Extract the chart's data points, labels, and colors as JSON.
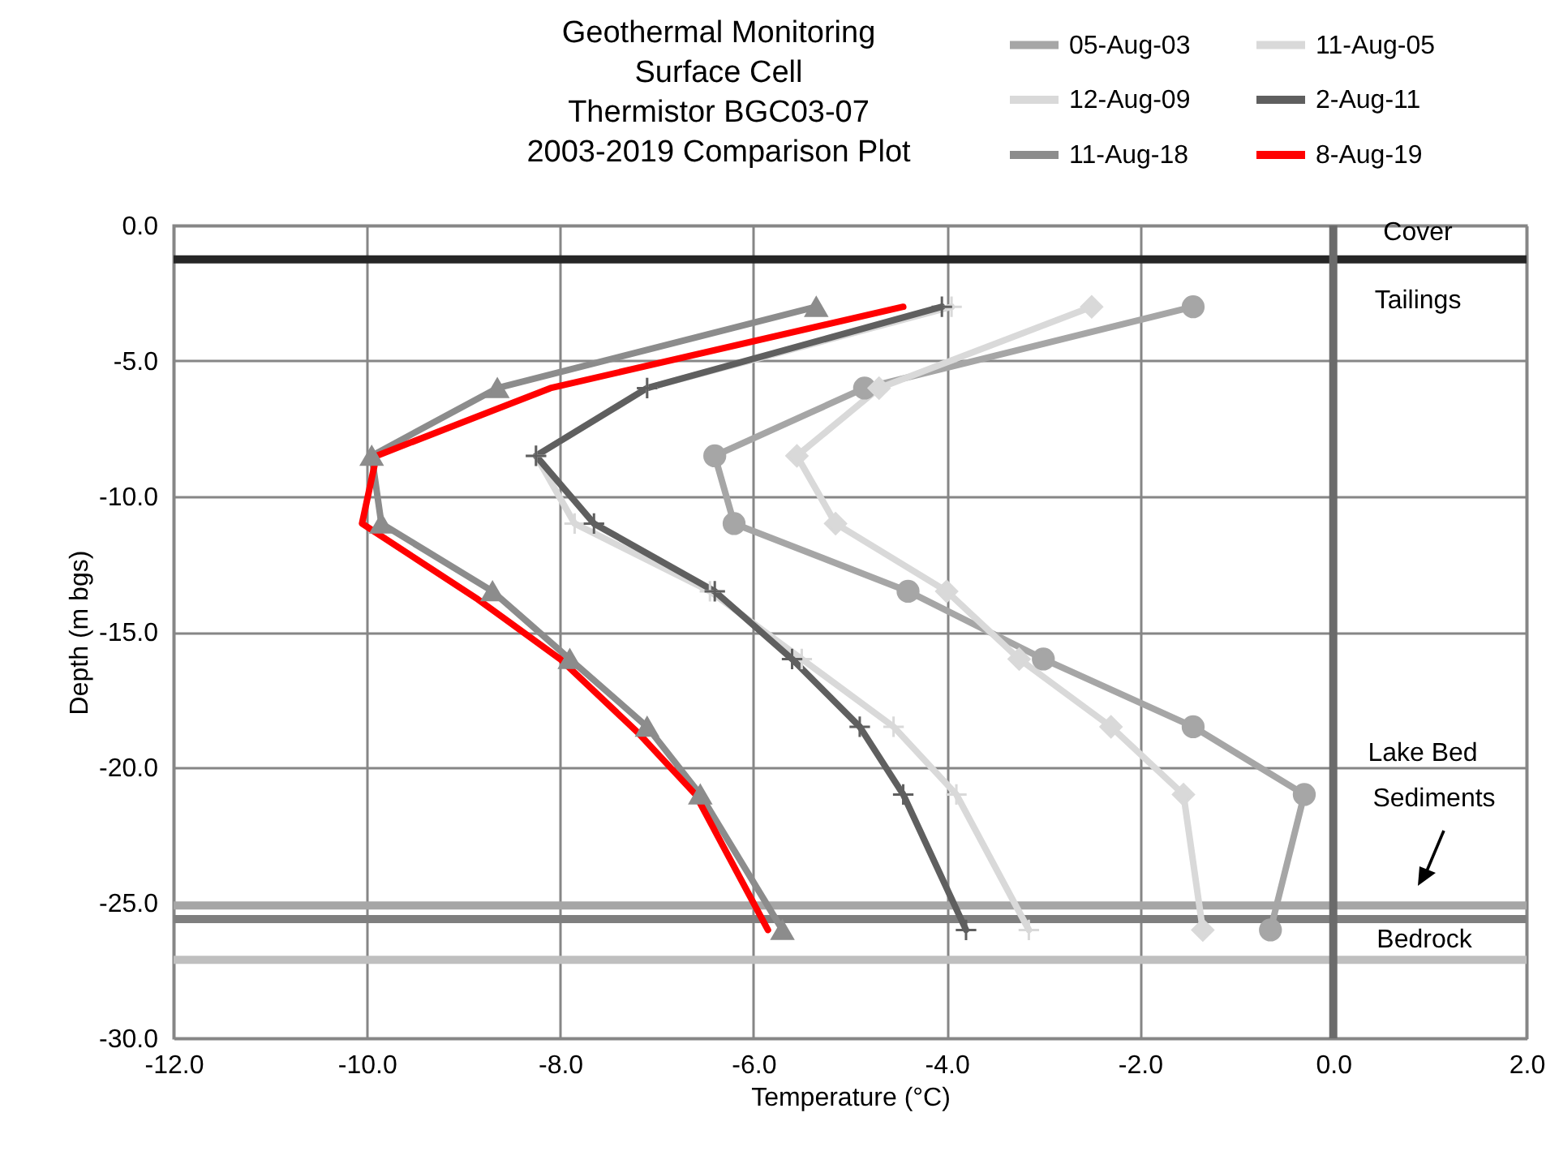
{
  "chart_data": {
    "type": "line",
    "title": "Geothermal Monitoring\nSurface Cell\nThermistor BGC03-07\n2003-2019 Comparison Plot",
    "xlabel": "Temperature (°C)",
    "ylabel": "Depth (m bgs)",
    "xlim": [
      -12,
      2
    ],
    "ylim": [
      -30,
      0
    ],
    "xticks": [
      {
        "value": -12,
        "label": "-12.0"
      },
      {
        "value": -10,
        "label": "-10.0"
      },
      {
        "value": -8,
        "label": "-8.0"
      },
      {
        "value": -6,
        "label": "-6.0"
      },
      {
        "value": -4,
        "label": "-4.0"
      },
      {
        "value": -2,
        "label": "-2.0"
      },
      {
        "value": 0,
        "label": "0.0"
      },
      {
        "value": 2,
        "label": "2.0"
      }
    ],
    "yticks": [
      {
        "value": 0,
        "label": "0.0"
      },
      {
        "value": -5,
        "label": "-5.0"
      },
      {
        "value": -10,
        "label": "-10.0"
      },
      {
        "value": -15,
        "label": "-15.0"
      },
      {
        "value": -20,
        "label": "-20.0"
      },
      {
        "value": -25,
        "label": "-25.0"
      },
      {
        "value": -30,
        "label": "-30.0"
      }
    ],
    "grid": true,
    "legend": "top right",
    "series": [
      {
        "name": "05-Aug-03",
        "color": "#a6a6a6",
        "marker": "circle",
        "x": [
          -1.45,
          -4.85,
          -6.4,
          -6.2,
          -4.4,
          -3.0,
          -1.45,
          -0.3,
          -0.65
        ],
        "values": [
          -3,
          -6,
          -8.5,
          -11,
          -13.5,
          -16,
          -18.5,
          -21,
          -26
        ]
      },
      {
        "name": "11-Aug-05",
        "color": "#d9d9d9",
        "marker": "diamond",
        "x": [
          -2.5,
          -4.7,
          -5.55,
          -5.15,
          -4.0,
          -3.25,
          -2.3,
          -1.55,
          -1.35
        ],
        "values": [
          -3,
          -6,
          -8.5,
          -11,
          -13.5,
          -16,
          -18.5,
          -21,
          -26
        ]
      },
      {
        "name": "12-Aug-09",
        "color": "#d9d9d9",
        "marker": "cross",
        "x": [
          -3.95,
          -7.1,
          -8.25,
          -7.85,
          -6.45,
          -5.5,
          -4.55,
          -3.9,
          -3.15
        ],
        "values": [
          -3,
          -6,
          -8.5,
          -11,
          -13.5,
          -16,
          -18.5,
          -21,
          -26
        ]
      },
      {
        "name": "2-Aug-11",
        "color": "#5f5f5f",
        "marker": "cross",
        "x": [
          -4.05,
          -7.1,
          -8.25,
          -7.65,
          -6.4,
          -5.6,
          -4.9,
          -4.45,
          -3.8
        ],
        "values": [
          -3,
          -6,
          -8.5,
          -11,
          -13.5,
          -16,
          -18.5,
          -21,
          -26
        ]
      },
      {
        "name": "11-Aug-18",
        "color": "#8c8c8c",
        "marker": "triangle",
        "x": [
          -5.35,
          -8.65,
          -9.95,
          -9.85,
          -8.7,
          -7.9,
          -7.1,
          -6.55,
          -5.7
        ],
        "values": [
          -3,
          -6,
          -8.5,
          -11,
          -13.5,
          -16,
          -18.5,
          -21,
          -26
        ]
      },
      {
        "name": "8-Aug-19",
        "color": "#ff0000",
        "marker": "none",
        "x": [
          -4.45,
          -8.1,
          -9.9,
          -10.05,
          -8.85,
          -8.0,
          -7.2,
          -6.6,
          -5.85
        ],
        "values": [
          -3,
          -6,
          -8.5,
          -11,
          -13.8,
          -16,
          -18.7,
          -21,
          -26
        ]
      }
    ],
    "ref_lines": [
      {
        "axis": "y",
        "value": -1.25,
        "color": "#262626"
      },
      {
        "axis": "y",
        "value": -25.1,
        "color": "#a6a6a6"
      },
      {
        "axis": "y",
        "value": -25.6,
        "color": "#7f7f7f"
      },
      {
        "axis": "y",
        "value": -27.1,
        "color": "#bfbfbf"
      },
      {
        "axis": "x",
        "value": 0,
        "color": "#6b6b6b"
      }
    ],
    "annotations": [
      "Cover",
      "Tailings",
      "Lake Bed",
      "Sediments",
      "Bedrock"
    ]
  }
}
